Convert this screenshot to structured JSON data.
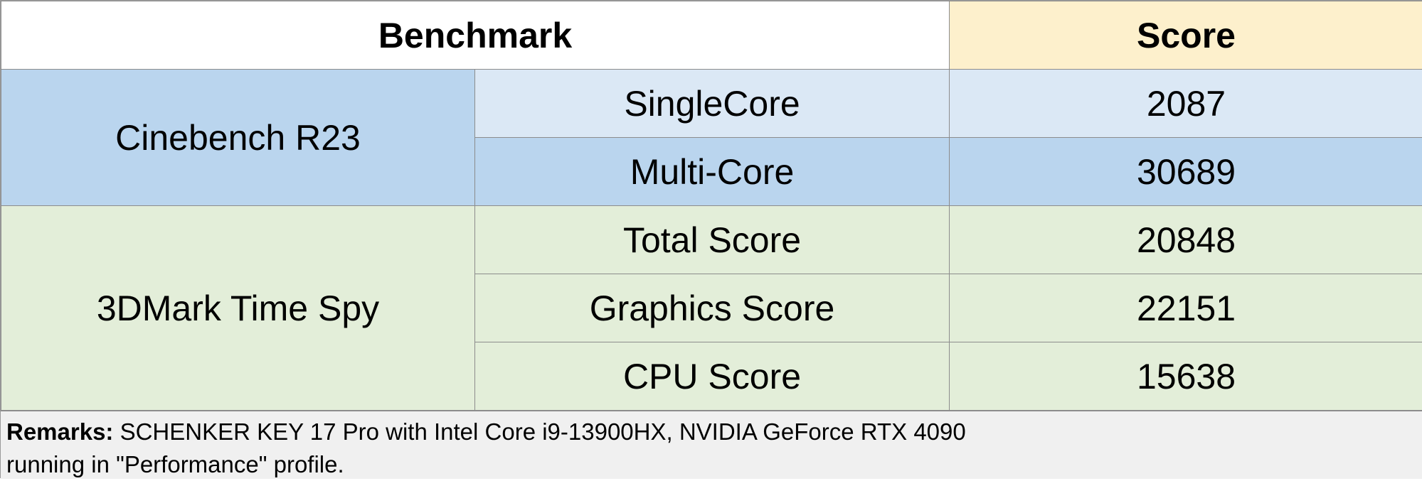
{
  "table": {
    "header": {
      "benchmark": "Benchmark",
      "score": "Score"
    },
    "groups": [
      {
        "name": "Cinebench R23",
        "rows": [
          {
            "test": "SingleCore",
            "score": "2087"
          },
          {
            "test": "Multi-Core",
            "score": "30689"
          }
        ]
      },
      {
        "name": "3DMark Time Spy",
        "rows": [
          {
            "test": "Total Score",
            "score": "20848"
          },
          {
            "test": "Graphics Score",
            "score": "22151"
          },
          {
            "test": "CPU Score",
            "score": "15638"
          }
        ]
      }
    ]
  },
  "remarks": {
    "label": "Remarks:",
    "line1": " SCHENKER KEY 17 Pro with Intel Core i9-13900HX, NVIDIA GeForce RTX 4090",
    "line2": "running in \"Performance\" profile."
  },
  "colors": {
    "score_header": "#fdf0cc",
    "cinebench_group": "#bad5ee",
    "cinebench_light_row": "#dbe8f5",
    "timespy_group": "#e3eed9",
    "remarks_background": "#f0f0f0"
  }
}
